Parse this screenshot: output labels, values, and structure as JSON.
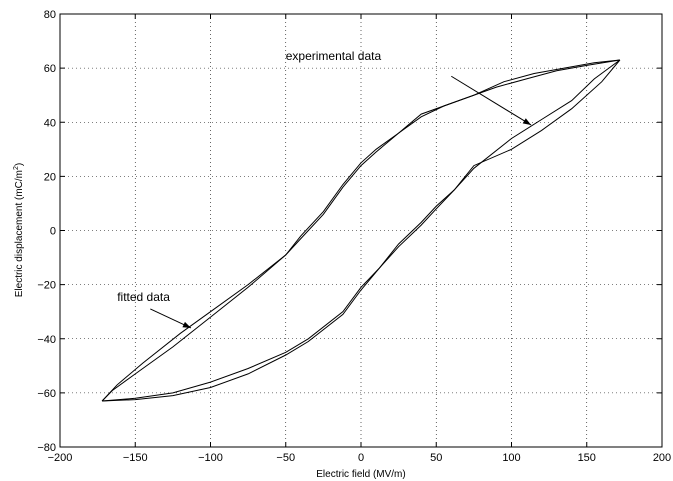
{
  "chart_data": {
    "type": "line",
    "title": "",
    "xlabel": "Electric field (MV/m)",
    "ylabel_main": "Electric displacement (mC/m",
    "ylabel_sup": "2",
    "ylabel_close": ")",
    "xlim": [
      -200,
      200
    ],
    "ylim": [
      -80,
      80
    ],
    "xticks": [
      -200,
      -150,
      -100,
      -50,
      0,
      50,
      100,
      150,
      200
    ],
    "yticks": [
      -80,
      -60,
      -40,
      -20,
      0,
      20,
      40,
      60,
      80
    ],
    "grid": true,
    "series": [
      {
        "x": [
          172,
          150,
          130,
          110,
          90,
          70,
          55,
          40,
          25,
          10,
          0,
          -12,
          -25,
          -40,
          -50,
          -75,
          -100,
          -125,
          -150,
          -165,
          -172
        ],
        "y": [
          63,
          61,
          59,
          56,
          53,
          49,
          46,
          43,
          36,
          29,
          24,
          16,
          6,
          -3,
          -9,
          -21,
          -32,
          -43,
          -53,
          -59,
          -63
        ]
      },
      {
        "x": [
          172,
          155,
          135,
          115,
          95,
          75,
          55,
          40,
          25,
          10,
          0,
          -12,
          -25,
          -40,
          -50,
          -75,
          -100,
          -120,
          -145,
          -162,
          -172
        ],
        "y": [
          63,
          62,
          60,
          58,
          55,
          50,
          46,
          42,
          36,
          30,
          25,
          17,
          7,
          -2,
          -9,
          -20,
          -30,
          -38,
          -49,
          -57,
          -63
        ]
      },
      {
        "x": [
          -172,
          -150,
          -125,
          -100,
          -75,
          -50,
          -35,
          -12,
          0,
          12,
          25,
          40,
          50,
          62,
          75,
          100,
          120,
          140,
          160,
          172
        ],
        "y": [
          -63,
          -62,
          -60,
          -56,
          -51,
          -45,
          -40,
          -30,
          -21,
          -14,
          -5,
          3,
          9,
          15,
          24,
          30,
          37,
          45,
          55,
          63
        ]
      },
      {
        "x": [
          -172,
          -150,
          -125,
          -100,
          -75,
          -50,
          -35,
          -12,
          0,
          12,
          25,
          40,
          50,
          62,
          75,
          100,
          120,
          140,
          155,
          172
        ],
        "y": [
          -63,
          -62.5,
          -61,
          -58,
          -53,
          -46,
          -41,
          -31,
          -22,
          -14,
          -6,
          2,
          8,
          15,
          23,
          34,
          41,
          48,
          56,
          63
        ]
      }
    ],
    "annotations": [
      {
        "text": "experimental  data",
        "from": [
          60,
          57
        ],
        "to": [
          113,
          39
        ]
      },
      {
        "text": "fitted data",
        "from": [
          -140,
          -29
        ],
        "to": [
          -113,
          -36
        ]
      }
    ]
  }
}
